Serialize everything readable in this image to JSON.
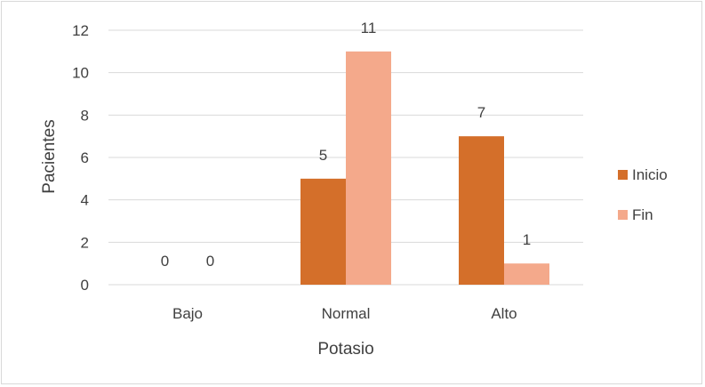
{
  "chart_data": {
    "type": "bar",
    "title": "",
    "xlabel": "Potasio",
    "ylabel": "Pacientes",
    "categories": [
      "Bajo",
      "Normal",
      "Alto"
    ],
    "series": [
      {
        "name": "Inicio",
        "values": [
          0,
          5,
          7
        ],
        "color": "#d46f2a"
      },
      {
        "name": "Fin",
        "values": [
          0,
          11,
          1
        ],
        "color": "#f4a98b"
      }
    ],
    "ylim": [
      0,
      12
    ],
    "yticks": [
      0,
      2,
      4,
      6,
      8,
      10,
      12
    ],
    "grid": true,
    "legend": "right",
    "data_labels": true
  },
  "colors": {
    "gridline": "#d9d9d9",
    "text": "#404040",
    "border": "#d9d9d9"
  }
}
